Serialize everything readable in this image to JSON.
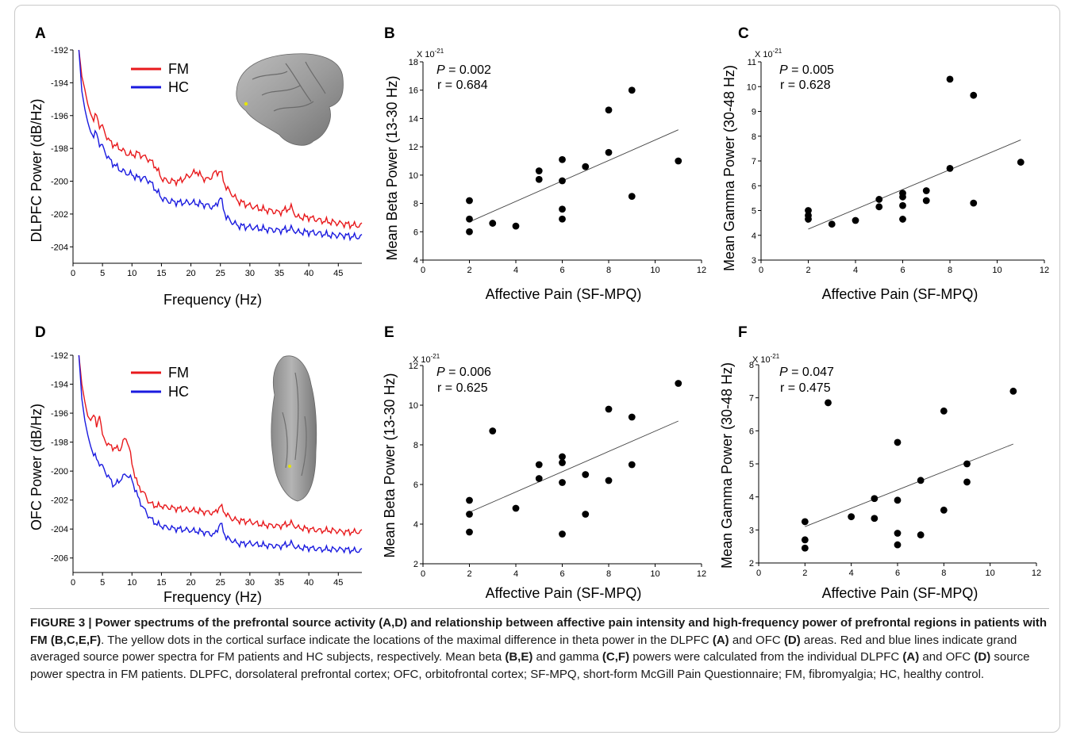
{
  "panels": {
    "A": {
      "letter": "A",
      "ylabel": "DLPFC Power (dB/Hz)",
      "xlabel": "Frequency (Hz)",
      "legend": [
        "FM",
        "HC"
      ]
    },
    "D": {
      "letter": "D",
      "ylabel": "OFC Power (dB/Hz)",
      "xlabel": "Frequency (Hz)",
      "legend": [
        "FM",
        "HC"
      ]
    },
    "B": {
      "letter": "B",
      "ylabel": "Mean Beta Power (13-30 Hz)",
      "xlabel": "Affective Pain (SF-MPQ)",
      "scale": "X 10",
      "scale_exp": "-21",
      "p_label": "P",
      "p_value": " = 0.002",
      "r_text": "r =  0.684"
    },
    "C": {
      "letter": "C",
      "ylabel": "Mean Gamma Power (30-48 Hz)",
      "xlabel": "Affective Pain (SF-MPQ)",
      "scale": "X 10",
      "scale_exp": "-21",
      "p_label": "P",
      "p_value": " = 0.005",
      "r_text": "r =  0.628"
    },
    "E": {
      "letter": "E",
      "ylabel": "Mean Beta Power (13-30 Hz)",
      "xlabel": "Affective Pain (SF-MPQ)",
      "scale": "X 10",
      "scale_exp": "-21",
      "p_label": "P",
      "p_value": " = 0.006",
      "r_text": "r =  0.625"
    },
    "F": {
      "letter": "F",
      "ylabel": "Mean Gamma Power (30-48 Hz)",
      "xlabel": "Affective Pain (SF-MPQ)",
      "scale": "X 10",
      "scale_exp": "-21",
      "p_label": "P",
      "p_value": " = 0.047",
      "r_text": "r =  0.475"
    }
  },
  "caption": {
    "label": "FIGURE 3 | Power spectrums of the prefrontal source activity (A,D) and relationship between affective pain intensity and high-frequency power of prefrontal regions in patients with FM (B,C,E,F)",
    "text_1": ". The yellow dots in the cortical surface indicate the locations of the maximal difference in theta power in the DLPFC ",
    "ref_A1": "(A)",
    "text_2": " and OFC ",
    "ref_D1": "(D)",
    "text_3": " areas. Red and blue lines indicate grand averaged source power spectra for FM patients and HC subjects, respectively. Mean beta ",
    "ref_BE": "(B,E)",
    "text_4": " and gamma ",
    "ref_CF": "(C,F)",
    "text_5": " powers were calculated from the individual DLPFC ",
    "ref_A2": "(A)",
    "text_6": " and OFC ",
    "ref_D2": "(D)",
    "text_7": " source power spectra in FM patients. DLPFC, dorsolateral prefrontal cortex; OFC, orbitofrontal cortex; SF-MPQ, short-form McGill Pain Questionnaire; FM, fibromyalgia; HC, healthy control."
  },
  "chart_data": [
    {
      "panel": "A",
      "type": "line",
      "xlabel": "Frequency (Hz)",
      "ylabel": "DLPFC Power (dB/Hz)",
      "xlim": [
        0,
        49
      ],
      "ylim": [
        -205,
        -192
      ],
      "xticks": [
        0,
        5,
        10,
        15,
        20,
        25,
        30,
        35,
        40,
        45
      ],
      "yticks": [
        -204,
        -202,
        -200,
        -198,
        -196,
        -194,
        -192
      ],
      "series": [
        {
          "name": "FM",
          "color": "#e8191c",
          "x": [
            1,
            1.5,
            2,
            2.5,
            3,
            3.5,
            4,
            4.5,
            5,
            6,
            7,
            8,
            9,
            10,
            11,
            12,
            13,
            14,
            15,
            16,
            18,
            20,
            21,
            22,
            23,
            24,
            25,
            26,
            27,
            28,
            30,
            32,
            35,
            37,
            38,
            40,
            42,
            44,
            46,
            48,
            49
          ],
          "y": [
            -192,
            -193.6,
            -194.4,
            -195.3,
            -195.9,
            -196.2,
            -196.0,
            -196.6,
            -196.7,
            -197.5,
            -197.8,
            -198.0,
            -198.3,
            -198.4,
            -198.3,
            -198.5,
            -198.7,
            -199.1,
            -199.8,
            -200.0,
            -200.0,
            -199.6,
            -199.4,
            -199.8,
            -199.9,
            -199.5,
            -199.4,
            -200.4,
            -200.8,
            -201.2,
            -201.5,
            -201.7,
            -201.9,
            -201.6,
            -202.2,
            -202.2,
            -202.4,
            -202.5,
            -202.6,
            -202.7,
            -202.7
          ]
        },
        {
          "name": "HC",
          "color": "#1a1adf",
          "x": [
            1,
            1.5,
            2,
            2.5,
            3,
            3.5,
            4,
            4.5,
            5,
            6,
            7,
            8,
            9,
            10,
            11,
            12,
            13,
            14,
            15,
            16,
            18,
            20,
            22,
            24,
            25,
            26,
            27,
            28,
            30,
            32,
            35,
            37,
            38,
            40,
            42,
            44,
            46,
            48,
            49
          ],
          "y": [
            -192,
            -194.5,
            -195.6,
            -196.4,
            -197.0,
            -197.2,
            -197.1,
            -197.7,
            -197.9,
            -198.6,
            -199.0,
            -199.3,
            -199.5,
            -199.6,
            -199.8,
            -199.8,
            -200.0,
            -200.5,
            -201.0,
            -201.2,
            -201.3,
            -201.3,
            -201.4,
            -201.6,
            -201.0,
            -202.2,
            -202.5,
            -202.7,
            -202.8,
            -202.9,
            -203.0,
            -202.9,
            -203.1,
            -203.1,
            -203.2,
            -203.3,
            -203.3,
            -203.4,
            -203.4
          ]
        }
      ]
    },
    {
      "panel": "D",
      "type": "line",
      "xlabel": "Frequency (Hz)",
      "ylabel": "OFC Power (dB/Hz)",
      "xlim": [
        0,
        49
      ],
      "ylim": [
        -207,
        -192
      ],
      "xticks": [
        0,
        5,
        10,
        15,
        20,
        25,
        30,
        35,
        40,
        45
      ],
      "yticks": [
        -206,
        -204,
        -202,
        -200,
        -198,
        -196,
        -194,
        -192
      ],
      "series": [
        {
          "name": "FM",
          "color": "#e8191c",
          "x": [
            1,
            1.5,
            2,
            2.5,
            3,
            3.5,
            4,
            4.5,
            5,
            6,
            7,
            8,
            8.5,
            9,
            9.5,
            10,
            11,
            12,
            13,
            14,
            15,
            16,
            18,
            20,
            22,
            24,
            25,
            26,
            27,
            28,
            30,
            32,
            35,
            37,
            38,
            40,
            42,
            44,
            46,
            48,
            49
          ],
          "y": [
            -192,
            -194.0,
            -195.2,
            -196.2,
            -196.5,
            -196.0,
            -197.0,
            -196.0,
            -197.6,
            -198.2,
            -198.4,
            -198.5,
            -198.0,
            -197.7,
            -198.3,
            -199.5,
            -201.0,
            -201.5,
            -202.2,
            -202.4,
            -202.4,
            -202.5,
            -202.6,
            -202.7,
            -202.8,
            -202.9,
            -202.4,
            -203.0,
            -203.3,
            -203.4,
            -203.5,
            -203.7,
            -203.8,
            -203.6,
            -203.9,
            -204.0,
            -204.1,
            -204.1,
            -204.2,
            -204.2,
            -204.2
          ]
        },
        {
          "name": "HC",
          "color": "#1a1adf",
          "x": [
            1,
            1.5,
            2,
            2.5,
            3,
            3.5,
            4,
            5,
            6,
            7,
            8,
            9,
            10,
            11,
            12,
            13,
            14,
            15,
            16,
            18,
            20,
            22,
            24,
            25,
            26,
            27,
            28,
            30,
            32,
            35,
            37,
            38,
            40,
            42,
            44,
            46,
            48,
            49
          ],
          "y": [
            -192,
            -195.0,
            -196.5,
            -197.5,
            -198.3,
            -198.8,
            -199.2,
            -199.7,
            -200.4,
            -201.0,
            -200.6,
            -200.2,
            -200.6,
            -201.8,
            -202.6,
            -203.2,
            -203.6,
            -203.8,
            -203.9,
            -204.0,
            -204.1,
            -204.2,
            -204.4,
            -203.6,
            -204.6,
            -204.8,
            -205.0,
            -205.0,
            -205.1,
            -205.2,
            -205.0,
            -205.3,
            -205.3,
            -205.4,
            -205.4,
            -205.4,
            -205.5,
            -205.5
          ]
        }
      ]
    },
    {
      "panel": "B",
      "type": "scatter",
      "xlabel": "Affective Pain (SF-MPQ)",
      "ylabel": "Mean Beta Power (13-30 Hz)",
      "xlim": [
        0,
        12
      ],
      "ylim": [
        4,
        18
      ],
      "xticks": [
        0,
        2,
        4,
        6,
        8,
        10,
        12
      ],
      "yticks": [
        4,
        6,
        8,
        10,
        12,
        14,
        16,
        18
      ],
      "x": [
        2,
        2,
        2,
        3,
        4,
        5,
        5,
        6,
        6,
        6,
        6,
        7,
        8,
        8,
        9,
        9,
        11
      ],
      "y": [
        8.2,
        6.9,
        6.0,
        6.6,
        6.4,
        10.3,
        9.7,
        11.1,
        9.6,
        7.6,
        6.9,
        10.6,
        14.6,
        11.6,
        16.0,
        8.5,
        11.0
      ],
      "fit": [
        [
          2,
          6.7
        ],
        [
          11,
          13.2
        ]
      ]
    },
    {
      "panel": "C",
      "type": "scatter",
      "xlabel": "Affective Pain (SF-MPQ)",
      "ylabel": "Mean Gamma Power (30-48 Hz)",
      "xlim": [
        0,
        12
      ],
      "ylim": [
        3,
        11
      ],
      "xticks": [
        0,
        2,
        4,
        6,
        8,
        10,
        12
      ],
      "yticks": [
        3,
        4,
        5,
        6,
        7,
        8,
        9,
        10,
        11
      ],
      "x": [
        2,
        2,
        2,
        3,
        4,
        5,
        5,
        6,
        6,
        6,
        6,
        7,
        7,
        8,
        8,
        9,
        9,
        11
      ],
      "y": [
        5.0,
        4.8,
        4.65,
        4.45,
        4.6,
        5.45,
        5.15,
        5.7,
        5.55,
        5.2,
        4.65,
        5.8,
        5.4,
        10.3,
        6.7,
        9.65,
        5.3,
        6.95
      ],
      "fit": [
        [
          2,
          4.25
        ],
        [
          11,
          7.85
        ]
      ]
    },
    {
      "panel": "E",
      "type": "scatter",
      "xlabel": "Affective Pain (SF-MPQ)",
      "ylabel": "Mean Beta Power (13-30 Hz)",
      "xlim": [
        0,
        12
      ],
      "ylim": [
        2,
        12
      ],
      "xticks": [
        0,
        2,
        4,
        6,
        8,
        10,
        12
      ],
      "yticks": [
        2,
        4,
        6,
        8,
        10,
        12
      ],
      "x": [
        2,
        2,
        2,
        3,
        4,
        5,
        5,
        6,
        6,
        6,
        6,
        7,
        7,
        8,
        8,
        9,
        9,
        11
      ],
      "y": [
        5.2,
        4.5,
        3.6,
        8.7,
        4.8,
        7.0,
        6.3,
        7.4,
        7.1,
        6.1,
        3.5,
        6.5,
        4.5,
        9.8,
        6.2,
        9.4,
        7.0,
        11.1
      ],
      "fit": [
        [
          2,
          4.6
        ],
        [
          11,
          9.2
        ]
      ]
    },
    {
      "panel": "F",
      "type": "scatter",
      "xlabel": "Affective Pain (SF-MPQ)",
      "ylabel": "Mean Gamma Power (30-48 Hz)",
      "xlim": [
        0,
        12
      ],
      "ylim": [
        2,
        8
      ],
      "xticks": [
        0,
        2,
        4,
        6,
        8,
        10,
        12
      ],
      "yticks": [
        2,
        3,
        4,
        5,
        6,
        7,
        8
      ],
      "x": [
        2,
        2,
        2,
        3,
        4,
        5,
        5,
        6,
        6,
        6,
        6,
        7,
        7,
        8,
        8,
        9,
        9,
        11
      ],
      "y": [
        3.25,
        2.7,
        2.45,
        6.85,
        3.4,
        3.95,
        3.35,
        5.65,
        3.9,
        2.9,
        2.55,
        4.5,
        2.85,
        6.6,
        3.6,
        5.0,
        4.45,
        7.2
      ],
      "fit": [
        [
          2,
          3.1
        ],
        [
          11,
          5.6
        ]
      ]
    }
  ]
}
